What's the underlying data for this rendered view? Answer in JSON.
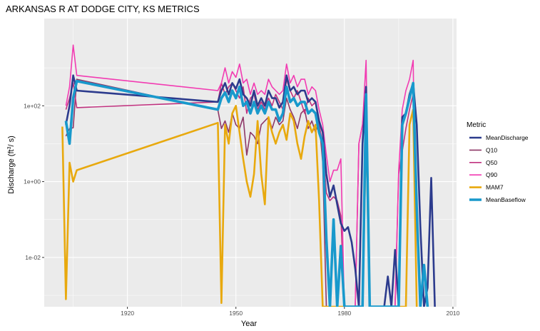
{
  "chart_data": {
    "type": "line",
    "title": "ARKANSAS R AT DODGE CITY, KS  METRICS",
    "xlabel": "Year",
    "ylabel_parts": [
      "Discharge (ft",
      "3",
      "/ s)"
    ],
    "xlim": [
      1897,
      2011
    ],
    "ylim_log10": [
      -3.3,
      4.3
    ],
    "y_scale": "log",
    "grid": true,
    "legend_position": "right",
    "legend_title": "Metric",
    "x_ticks": [
      1920,
      1950,
      1980,
      2010
    ],
    "x_tick_labels": [
      "1920",
      "1950",
      "1980",
      "2010"
    ],
    "y_ticks_log10": [
      2,
      0,
      -2
    ],
    "y_tick_labels": [
      "1e+02",
      "1e+00",
      "1e-02"
    ],
    "series": [
      {
        "name": "Q10",
        "color": "#8e3766",
        "width": 1.6,
        "points": [
          [
            1903,
            1.2
          ],
          [
            1904,
            1.4
          ],
          [
            1905,
            1.42
          ],
          [
            1906,
            2.7
          ],
          [
            1945,
            1.89
          ],
          [
            1946,
            1.4
          ],
          [
            1947,
            1.6
          ],
          [
            1948,
            1.3
          ],
          [
            1949,
            1.8
          ],
          [
            1950,
            1.5
          ],
          [
            1951,
            1.4
          ],
          [
            1952,
            1.7
          ],
          [
            1953,
            0.7
          ],
          [
            1954,
            1.3
          ],
          [
            1955,
            1.2
          ],
          [
            1956,
            1.0
          ],
          [
            1957,
            1.5
          ],
          [
            1958,
            1.6
          ],
          [
            1959,
            1.7
          ],
          [
            1960,
            1.4
          ],
          [
            1961,
            1.7
          ],
          [
            1962,
            1.5
          ],
          [
            1963,
            1.6
          ],
          [
            1964,
            2.2
          ],
          [
            1965,
            1.9
          ],
          [
            1966,
            1.7
          ],
          [
            1967,
            1.4
          ],
          [
            1968,
            1.8
          ],
          [
            1969,
            1.9
          ],
          [
            1970,
            1.4
          ],
          [
            1971,
            1.6
          ],
          [
            1972,
            1.3
          ],
          [
            1973,
            1.6
          ],
          [
            1974,
            0.5
          ],
          [
            1975,
            -3.3
          ]
        ]
      },
      {
        "name": "Q50",
        "color": "#c0337f",
        "width": 1.6,
        "points": [
          [
            1903,
            1.9
          ],
          [
            1904,
            2.2
          ],
          [
            1905,
            2.6
          ],
          [
            1906,
            1.95
          ],
          [
            1945,
            2.1
          ],
          [
            1946,
            2.6
          ],
          [
            1947,
            2.3
          ],
          [
            1948,
            2.5
          ],
          [
            1949,
            2.6
          ],
          [
            1950,
            2.4
          ],
          [
            1951,
            2.2
          ],
          [
            1952,
            2.5
          ],
          [
            1953,
            1.8
          ],
          [
            1954,
            2.2
          ],
          [
            1955,
            2.3
          ],
          [
            1956,
            1.9
          ],
          [
            1957,
            2.1
          ],
          [
            1958,
            1.9
          ],
          [
            1959,
            2.2
          ],
          [
            1960,
            2.0
          ],
          [
            1961,
            2.3
          ],
          [
            1962,
            2.1
          ],
          [
            1963,
            1.9
          ],
          [
            1964,
            2.7
          ],
          [
            1965,
            2.4
          ],
          [
            1966,
            2.2
          ],
          [
            1967,
            2.4
          ],
          [
            1968,
            2.1
          ],
          [
            1969,
            1.8
          ],
          [
            1970,
            2.2
          ],
          [
            1971,
            2.0
          ],
          [
            1972,
            2.1
          ],
          [
            1973,
            1.5
          ],
          [
            1974,
            1.0
          ],
          [
            1975,
            -0.3
          ],
          [
            1976,
            -0.5
          ],
          [
            1977,
            -0.4
          ],
          [
            1978,
            -0.5
          ],
          [
            1979,
            -0.9
          ],
          [
            1980,
            -3.3
          ],
          [
            1983,
            -3.3
          ],
          [
            1984,
            1.0
          ],
          [
            1985,
            1.5
          ],
          [
            1986,
            2.4
          ],
          [
            1987,
            -3.3
          ],
          [
            1994,
            -3.3
          ],
          [
            1995,
            0.2
          ],
          [
            1996,
            0.8
          ],
          [
            1997,
            1.4
          ],
          [
            1998,
            1.9
          ],
          [
            1999,
            2.3
          ],
          [
            2000,
            -3.3
          ]
        ]
      },
      {
        "name": "Q90",
        "color": "#f23bb2",
        "width": 1.6,
        "points": [
          [
            1903,
            2.0
          ],
          [
            1904,
            2.5
          ],
          [
            1905,
            3.6
          ],
          [
            1906,
            2.8
          ],
          [
            1945,
            2.4
          ],
          [
            1946,
            2.6
          ],
          [
            1947,
            3.0
          ],
          [
            1948,
            2.6
          ],
          [
            1949,
            2.9
          ],
          [
            1950,
            2.75
          ],
          [
            1951,
            3.1
          ],
          [
            1952,
            2.6
          ],
          [
            1953,
            2.7
          ],
          [
            1954,
            2.3
          ],
          [
            1955,
            2.6
          ],
          [
            1956,
            2.3
          ],
          [
            1957,
            2.4
          ],
          [
            1958,
            2.3
          ],
          [
            1959,
            2.7
          ],
          [
            1960,
            2.5
          ],
          [
            1961,
            2.4
          ],
          [
            1962,
            2.3
          ],
          [
            1963,
            2.4
          ],
          [
            1964,
            3.1
          ],
          [
            1965,
            2.6
          ],
          [
            1966,
            2.8
          ],
          [
            1967,
            2.5
          ],
          [
            1968,
            2.7
          ],
          [
            1969,
            2.7
          ],
          [
            1970,
            2.3
          ],
          [
            1971,
            2.5
          ],
          [
            1972,
            2.4
          ],
          [
            1973,
            1.9
          ],
          [
            1974,
            1.5
          ],
          [
            1975,
            0.7
          ],
          [
            1976,
            0.0
          ],
          [
            1977,
            0.3
          ],
          [
            1978,
            0.3
          ],
          [
            1979,
            0.6
          ],
          [
            1980,
            -3.3
          ],
          [
            1983,
            -3.3
          ],
          [
            1984,
            1.0
          ],
          [
            1985,
            1.5
          ],
          [
            1986,
            3.2
          ],
          [
            1987,
            -3.3
          ],
          [
            1994,
            -3.3
          ],
          [
            1995,
            0.3
          ],
          [
            1996,
            1.9
          ],
          [
            1997,
            2.4
          ],
          [
            1998,
            2.7
          ],
          [
            1999,
            3.2
          ],
          [
            2000,
            -3.3
          ]
        ]
      },
      {
        "name": "MeanDischarge",
        "color": "#2c3b8d",
        "width": 2.6,
        "points": [
          [
            1903,
            1.5
          ],
          [
            1904,
            2.0
          ],
          [
            1905,
            2.8
          ],
          [
            1906,
            2.4
          ],
          [
            1945,
            2.1
          ],
          [
            1946,
            2.4
          ],
          [
            1947,
            2.6
          ],
          [
            1948,
            2.3
          ],
          [
            1949,
            2.6
          ],
          [
            1950,
            2.45
          ],
          [
            1951,
            2.7
          ],
          [
            1952,
            2.3
          ],
          [
            1953,
            2.2
          ],
          [
            1954,
            2.0
          ],
          [
            1955,
            2.4
          ],
          [
            1956,
            2.0
          ],
          [
            1957,
            2.2
          ],
          [
            1958,
            2.0
          ],
          [
            1959,
            2.4
          ],
          [
            1960,
            2.2
          ],
          [
            1961,
            2.2
          ],
          [
            1962,
            1.95
          ],
          [
            1963,
            2.1
          ],
          [
            1964,
            2.8
          ],
          [
            1965,
            2.4
          ],
          [
            1966,
            2.5
          ],
          [
            1967,
            2.3
          ],
          [
            1968,
            2.4
          ],
          [
            1969,
            2.4
          ],
          [
            1970,
            2.1
          ],
          [
            1971,
            2.2
          ],
          [
            1972,
            2.1
          ],
          [
            1973,
            1.6
          ],
          [
            1974,
            1.3
          ],
          [
            1975,
            0.2
          ],
          [
            1976,
            -0.4
          ],
          [
            1977,
            -0.1
          ],
          [
            1978,
            -0.6
          ],
          [
            1979,
            -1.1
          ],
          [
            1980,
            -1.3
          ],
          [
            1981,
            -1.2
          ],
          [
            1982,
            -1.6
          ],
          [
            1983,
            -2.3
          ],
          [
            1984,
            -3.3
          ],
          [
            1985,
            1.0
          ],
          [
            1986,
            2.5
          ],
          [
            1987,
            -3.3
          ],
          [
            1991,
            -3.3
          ],
          [
            1992,
            -2.5
          ],
          [
            1993,
            -3.3
          ],
          [
            1994,
            -1.8
          ],
          [
            1995,
            -3.3
          ],
          [
            1996,
            1.7
          ],
          [
            1997,
            1.8
          ],
          [
            1998,
            2.3
          ],
          [
            1999,
            2.6
          ],
          [
            2000,
            1.5
          ],
          [
            2001,
            -1.2
          ],
          [
            2002,
            -3.3
          ],
          [
            2003,
            -2.8
          ],
          [
            2004,
            0.1
          ],
          [
            2005,
            -3.3
          ]
        ]
      },
      {
        "name": "MAM7",
        "color": "#e8a90e",
        "width": 2.6,
        "points": [
          [
            1902,
            1.45
          ],
          [
            1903,
            -3.1
          ],
          [
            1904,
            0.5
          ],
          [
            1905,
            0.0
          ],
          [
            1906,
            0.3
          ],
          [
            1945,
            1.55
          ],
          [
            1946,
            -3.2
          ],
          [
            1947,
            1.5
          ],
          [
            1948,
            1.0
          ],
          [
            1949,
            1.8
          ],
          [
            1950,
            2.0
          ],
          [
            1951,
            1.3
          ],
          [
            1952,
            0.6
          ],
          [
            1953,
            0.0
          ],
          [
            1954,
            -0.4
          ],
          [
            1955,
            0.2
          ],
          [
            1956,
            1.6
          ],
          [
            1957,
            0.2
          ],
          [
            1958,
            -0.6
          ],
          [
            1959,
            1.7
          ],
          [
            1960,
            1.3
          ],
          [
            1961,
            1.0
          ],
          [
            1962,
            1.3
          ],
          [
            1963,
            1.5
          ],
          [
            1964,
            1.1
          ],
          [
            1965,
            1.8
          ],
          [
            1966,
            1.6
          ],
          [
            1967,
            1.0
          ],
          [
            1968,
            0.6
          ],
          [
            1969,
            1.2
          ],
          [
            1970,
            1.6
          ],
          [
            1971,
            1.3
          ],
          [
            1972,
            1.5
          ],
          [
            1973,
            -0.5
          ],
          [
            1974,
            -3.3
          ],
          [
            1985,
            -3.3
          ],
          [
            1986,
            1.5
          ],
          [
            1987,
            -3.3
          ],
          [
            1997,
            -3.3
          ],
          [
            1998,
            1.5
          ],
          [
            1999,
            1.9
          ],
          [
            2000,
            -3.3
          ]
        ]
      },
      {
        "name": "MeanBaseflow",
        "color": "#1899cc",
        "width": 3.6,
        "points": [
          [
            1903,
            1.6
          ],
          [
            1904,
            1.0
          ],
          [
            1905,
            2.2
          ],
          [
            1906,
            2.65
          ],
          [
            1945,
            1.9
          ],
          [
            1946,
            2.2
          ],
          [
            1947,
            2.35
          ],
          [
            1948,
            2.1
          ],
          [
            1949,
            2.4
          ],
          [
            1950,
            2.2
          ],
          [
            1951,
            2.5
          ],
          [
            1952,
            2.0
          ],
          [
            1953,
            2.1
          ],
          [
            1954,
            1.8
          ],
          [
            1955,
            2.1
          ],
          [
            1956,
            1.8
          ],
          [
            1957,
            2.0
          ],
          [
            1958,
            1.8
          ],
          [
            1959,
            2.1
          ],
          [
            1960,
            1.9
          ],
          [
            1961,
            1.9
          ],
          [
            1962,
            1.6
          ],
          [
            1963,
            1.8
          ],
          [
            1964,
            2.5
          ],
          [
            1965,
            2.1
          ],
          [
            1966,
            2.2
          ],
          [
            1967,
            2.0
          ],
          [
            1968,
            2.1
          ],
          [
            1969,
            2.1
          ],
          [
            1970,
            1.8
          ],
          [
            1971,
            1.9
          ],
          [
            1972,
            1.8
          ],
          [
            1973,
            1.3
          ],
          [
            1974,
            1.0
          ],
          [
            1975,
            -1.5
          ],
          [
            1976,
            -3.3
          ],
          [
            1977,
            -1.0
          ],
          [
            1978,
            -3.3
          ],
          [
            1979,
            -1.7
          ],
          [
            1980,
            -3.3
          ],
          [
            1985,
            -3.3
          ],
          [
            1986,
            2.3
          ],
          [
            1987,
            -3.3
          ],
          [
            1995,
            -3.3
          ],
          [
            1996,
            1.5
          ],
          [
            1997,
            1.8
          ],
          [
            1998,
            2.2
          ],
          [
            1999,
            2.6
          ],
          [
            2000,
            -0.7
          ],
          [
            2001,
            -3.3
          ],
          [
            2002,
            -2.2
          ],
          [
            2003,
            -3.3
          ]
        ]
      }
    ],
    "legend": [
      "MeanDischarge",
      "Q10",
      "Q50",
      "Q90",
      "MAM7",
      "MeanBaseflow"
    ]
  }
}
